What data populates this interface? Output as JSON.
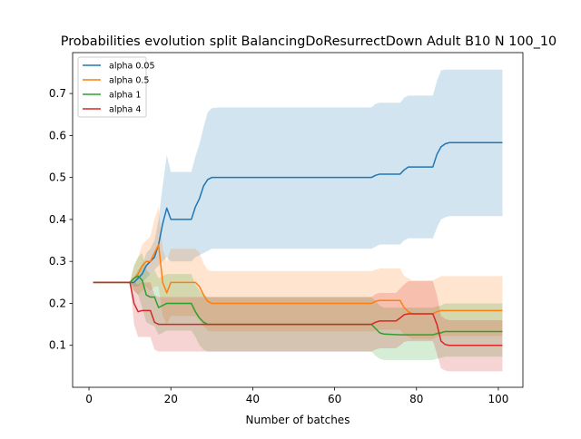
{
  "chart_data": {
    "type": "line",
    "title": "Probabilities evolution split BalancingDoResurrectDown Adult B10 N 100_10",
    "xlabel": "Number of batches",
    "ylabel": "",
    "xlim": [
      -4,
      106
    ],
    "ylim": [
      0.0,
      0.7975
    ],
    "xticks": [
      0,
      20,
      40,
      60,
      80,
      100
    ],
    "yticks": [
      0.1,
      0.2,
      0.3,
      0.4,
      0.5,
      0.6,
      0.7
    ],
    "xtick_labels": [
      "0",
      "20",
      "40",
      "60",
      "80",
      "100"
    ],
    "ytick_labels": [
      "0.1",
      "0.2",
      "0.3",
      "0.4",
      "0.5",
      "0.6",
      "0.7"
    ],
    "grid": false,
    "legend_position": "upper-left",
    "series": [
      {
        "name": "alpha 0.05",
        "color": "#1f77b4",
        "x": [
          1,
          10,
          11,
          12,
          13,
          14,
          15,
          16,
          17,
          18,
          19,
          20,
          21,
          25,
          26,
          27,
          28,
          29,
          30,
          32,
          35,
          69,
          70,
          71,
          72,
          76,
          77,
          78,
          79,
          84,
          85,
          86,
          87,
          88,
          89,
          90,
          101
        ],
        "y": [
          0.25,
          0.25,
          0.25,
          0.26,
          0.27,
          0.29,
          0.3,
          0.31,
          0.34,
          0.39,
          0.427,
          0.4,
          0.4,
          0.4,
          0.43,
          0.45,
          0.48,
          0.495,
          0.5,
          0.5,
          0.5,
          0.5,
          0.505,
          0.508,
          0.508,
          0.508,
          0.518,
          0.525,
          0.525,
          0.525,
          0.555,
          0.573,
          0.58,
          0.583,
          0.583,
          0.583,
          0.583
        ],
        "lower": [
          0.25,
          0.25,
          0.24,
          0.24,
          0.25,
          0.26,
          0.27,
          0.28,
          0.29,
          0.3,
          0.31,
          0.3,
          0.3,
          0.3,
          0.31,
          0.315,
          0.32,
          0.325,
          0.33,
          0.33,
          0.33,
          0.33,
          0.335,
          0.34,
          0.34,
          0.34,
          0.35,
          0.355,
          0.355,
          0.355,
          0.38,
          0.4,
          0.405,
          0.408,
          0.408,
          0.408,
          0.408
        ],
        "upper": [
          0.25,
          0.25,
          0.26,
          0.28,
          0.29,
          0.32,
          0.33,
          0.35,
          0.4,
          0.48,
          0.553,
          0.513,
          0.513,
          0.513,
          0.55,
          0.58,
          0.62,
          0.655,
          0.665,
          0.667,
          0.667,
          0.667,
          0.675,
          0.678,
          0.678,
          0.678,
          0.69,
          0.695,
          0.695,
          0.695,
          0.73,
          0.755,
          0.757,
          0.757,
          0.757,
          0.757,
          0.757
        ]
      },
      {
        "name": "alpha 0.5",
        "color": "#ff7f0e",
        "x": [
          1,
          10,
          11,
          12,
          13,
          14,
          15,
          16,
          17,
          18,
          19,
          20,
          21,
          25,
          26,
          27,
          28,
          29,
          30,
          32,
          35,
          69,
          70,
          71,
          72,
          76,
          77,
          78,
          79,
          84,
          85,
          86,
          87,
          88,
          101
        ],
        "y": [
          0.25,
          0.25,
          0.26,
          0.27,
          0.29,
          0.3,
          0.3,
          0.32,
          0.34,
          0.25,
          0.225,
          0.25,
          0.25,
          0.25,
          0.25,
          0.24,
          0.22,
          0.205,
          0.2,
          0.2,
          0.2,
          0.2,
          0.205,
          0.207,
          0.207,
          0.207,
          0.19,
          0.18,
          0.175,
          0.175,
          0.18,
          0.183,
          0.183,
          0.183,
          0.183
        ],
        "lower": [
          0.25,
          0.25,
          0.23,
          0.22,
          0.23,
          0.24,
          0.23,
          0.24,
          0.24,
          0.17,
          0.15,
          0.17,
          0.17,
          0.17,
          0.17,
          0.16,
          0.145,
          0.135,
          0.133,
          0.133,
          0.133,
          0.133,
          0.135,
          0.137,
          0.137,
          0.137,
          0.125,
          0.12,
          0.115,
          0.115,
          0.12,
          0.122,
          0.122,
          0.122,
          0.122
        ],
        "upper": [
          0.25,
          0.25,
          0.29,
          0.31,
          0.34,
          0.35,
          0.36,
          0.4,
          0.43,
          0.33,
          0.3,
          0.33,
          0.33,
          0.33,
          0.33,
          0.32,
          0.295,
          0.28,
          0.277,
          0.277,
          0.277,
          0.277,
          0.28,
          0.283,
          0.283,
          0.283,
          0.265,
          0.26,
          0.255,
          0.255,
          0.26,
          0.265,
          0.265,
          0.265,
          0.265
        ]
      },
      {
        "name": "alpha 1",
        "color": "#2ca02c",
        "x": [
          1,
          10,
          11,
          12,
          13,
          14,
          15,
          16,
          17,
          18,
          19,
          20,
          21,
          25,
          26,
          27,
          28,
          29,
          30,
          32,
          35,
          69,
          70,
          71,
          72,
          76,
          77,
          84,
          85,
          86,
          87,
          88,
          101
        ],
        "y": [
          0.25,
          0.25,
          0.26,
          0.265,
          0.255,
          0.22,
          0.215,
          0.215,
          0.19,
          0.195,
          0.2,
          0.2,
          0.2,
          0.2,
          0.18,
          0.165,
          0.155,
          0.15,
          0.15,
          0.15,
          0.15,
          0.15,
          0.14,
          0.13,
          0.127,
          0.125,
          0.125,
          0.125,
          0.128,
          0.13,
          0.133,
          0.133,
          0.133
        ],
        "lower": [
          0.25,
          0.25,
          0.23,
          0.22,
          0.19,
          0.155,
          0.15,
          0.145,
          0.125,
          0.13,
          0.135,
          0.135,
          0.135,
          0.135,
          0.12,
          0.1,
          0.09,
          0.085,
          0.085,
          0.085,
          0.085,
          0.085,
          0.075,
          0.068,
          0.065,
          0.065,
          0.065,
          0.065,
          0.068,
          0.07,
          0.073,
          0.073,
          0.073
        ],
        "upper": [
          0.25,
          0.25,
          0.29,
          0.31,
          0.32,
          0.28,
          0.27,
          0.28,
          0.26,
          0.265,
          0.27,
          0.27,
          0.27,
          0.27,
          0.245,
          0.23,
          0.22,
          0.215,
          0.215,
          0.215,
          0.215,
          0.215,
          0.205,
          0.195,
          0.19,
          0.19,
          0.19,
          0.19,
          0.193,
          0.195,
          0.2,
          0.2,
          0.2
        ]
      },
      {
        "name": "alpha 4",
        "color": "#d62728",
        "x": [
          1,
          10,
          11,
          12,
          13,
          14,
          15,
          16,
          17,
          18,
          25,
          26,
          27,
          28,
          35,
          69,
          70,
          71,
          75,
          76,
          77,
          78,
          79,
          84,
          85,
          86,
          87,
          88,
          101
        ],
        "y": [
          0.25,
          0.25,
          0.2,
          0.18,
          0.183,
          0.183,
          0.183,
          0.155,
          0.15,
          0.15,
          0.15,
          0.15,
          0.15,
          0.15,
          0.15,
          0.15,
          0.155,
          0.158,
          0.158,
          0.165,
          0.173,
          0.175,
          0.175,
          0.175,
          0.15,
          0.11,
          0.102,
          0.1,
          0.1
        ],
        "lower": [
          0.25,
          0.25,
          0.15,
          0.12,
          0.12,
          0.12,
          0.12,
          0.09,
          0.085,
          0.085,
          0.085,
          0.085,
          0.085,
          0.085,
          0.085,
          0.085,
          0.09,
          0.093,
          0.093,
          0.1,
          0.108,
          0.11,
          0.11,
          0.11,
          0.08,
          0.045,
          0.04,
          0.038,
          0.038
        ],
        "upper": [
          0.25,
          0.25,
          0.25,
          0.245,
          0.25,
          0.25,
          0.25,
          0.22,
          0.215,
          0.215,
          0.215,
          0.215,
          0.215,
          0.215,
          0.215,
          0.215,
          0.222,
          0.225,
          0.225,
          0.235,
          0.245,
          0.253,
          0.253,
          0.253,
          0.22,
          0.17,
          0.163,
          0.16,
          0.16
        ]
      }
    ]
  }
}
